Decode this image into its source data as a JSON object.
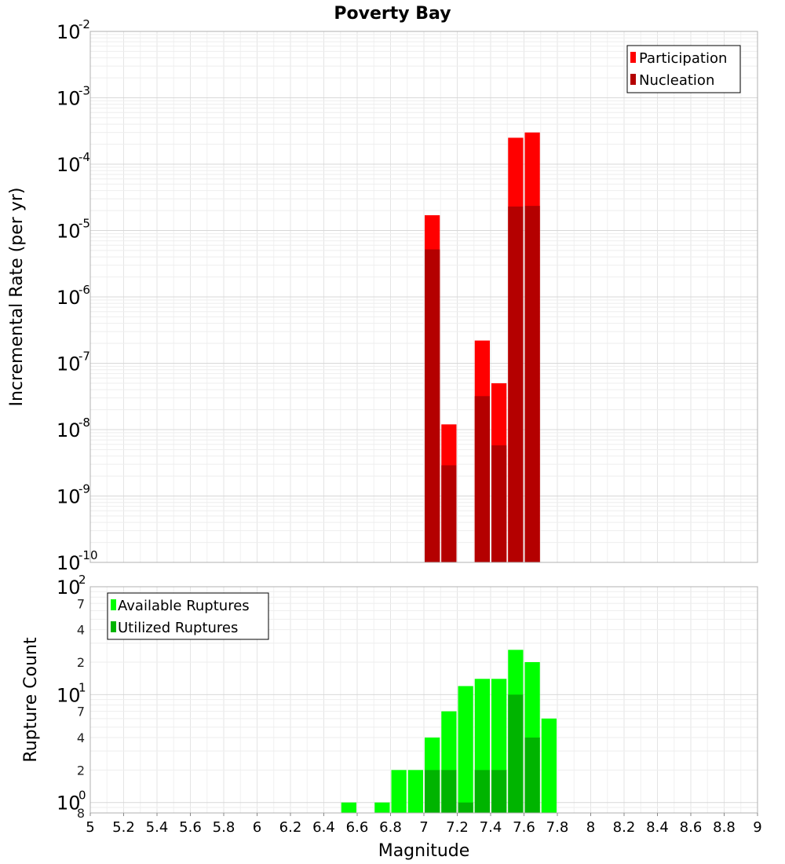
{
  "chart_data": [
    {
      "type": "bar",
      "title": "Poverty Bay",
      "xlabel": "",
      "ylabel": "Incremental Rate (per yr)",
      "yscale": "log",
      "xlim": [
        5,
        9
      ],
      "ylim": [
        1e-10,
        0.01
      ],
      "bin_width": 0.1,
      "legend_position": "top-right",
      "grid": true,
      "y_ticks": [
        {
          "base": "10",
          "exp": "-2"
        },
        {
          "base": "10",
          "exp": "-3"
        },
        {
          "base": "10",
          "exp": "-4"
        },
        {
          "base": "10",
          "exp": "-5"
        },
        {
          "base": "10",
          "exp": "-6"
        },
        {
          "base": "10",
          "exp": "-7"
        },
        {
          "base": "10",
          "exp": "-8"
        },
        {
          "base": "10",
          "exp": "-9"
        },
        {
          "base": "10",
          "exp": "-10"
        }
      ],
      "series": [
        {
          "name": "Participation",
          "color": "#ff0000",
          "x": [
            7.05,
            7.15,
            7.35,
            7.45,
            7.55,
            7.65
          ],
          "values": [
            1.7e-05,
            1.2e-08,
            2.2e-07,
            5e-08,
            0.00025,
            0.0003
          ]
        },
        {
          "name": "Nucleation",
          "color": "#b40000",
          "x": [
            7.05,
            7.15,
            7.35,
            7.45,
            7.55,
            7.65
          ],
          "values": [
            5.2e-06,
            2.9e-09,
            3.2e-08,
            5.8e-09,
            2.3e-05,
            2.35e-05
          ]
        }
      ]
    },
    {
      "type": "bar",
      "title": "",
      "xlabel": "Magnitude",
      "ylabel": "Rupture Count",
      "yscale": "log",
      "xlim": [
        5,
        9
      ],
      "ylim": [
        0.8,
        100
      ],
      "bin_width": 0.1,
      "legend_position": "top-left",
      "grid": true,
      "x_ticks": [
        "5",
        "5.2",
        "5.4",
        "5.6",
        "5.8",
        "6",
        "6.2",
        "6.4",
        "6.6",
        "6.8",
        "7",
        "7.2",
        "7.4",
        "7.6",
        "7.8",
        "8",
        "8.2",
        "8.4",
        "8.6",
        "8.8",
        "9"
      ],
      "y_major_ticks": [
        {
          "base": "10",
          "exp": "0"
        },
        {
          "base": "10",
          "exp": "1"
        },
        {
          "base": "10",
          "exp": "2"
        }
      ],
      "y_minor_ticks": [
        "8",
        "2",
        "4",
        "7",
        "2",
        "4",
        "7"
      ],
      "series": [
        {
          "name": "Available Ruptures",
          "color": "#00ff00",
          "x": [
            6.55,
            6.75,
            6.85,
            6.95,
            7.05,
            7.15,
            7.25,
            7.35,
            7.45,
            7.55,
            7.65,
            7.75
          ],
          "values": [
            1,
            1,
            2,
            2,
            4,
            7,
            12,
            14,
            14,
            26,
            20,
            6
          ]
        },
        {
          "name": "Utilized Ruptures",
          "color": "#00b400",
          "x": [
            7.05,
            7.15,
            7.25,
            7.35,
            7.45,
            7.55,
            7.65
          ],
          "values": [
            2,
            2,
            1,
            2,
            2,
            10,
            4
          ]
        }
      ]
    }
  ]
}
